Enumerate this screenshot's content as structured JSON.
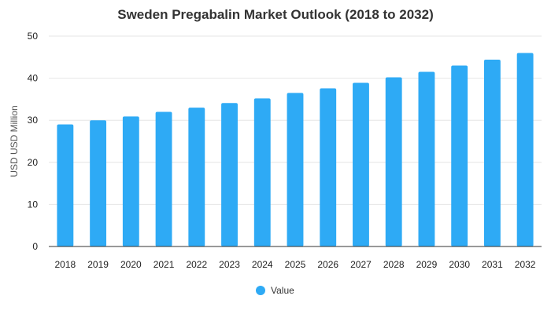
{
  "chart_data": {
    "type": "bar",
    "title": "Sweden Pregabalin Market Outlook (2018 to 2032)",
    "xlabel": "",
    "ylabel": "USD USD Million",
    "categories": [
      "2018",
      "2019",
      "2020",
      "2021",
      "2022",
      "2023",
      "2024",
      "2025",
      "2026",
      "2027",
      "2028",
      "2029",
      "2030",
      "2031",
      "2032"
    ],
    "series": [
      {
        "name": "Value",
        "color": "#2eaaf5",
        "values": [
          29.0,
          30.0,
          30.9,
          32.0,
          33.0,
          34.1,
          35.2,
          36.5,
          37.6,
          38.9,
          40.2,
          41.5,
          43.0,
          44.4,
          46.0
        ]
      }
    ],
    "ylim": [
      0,
      50
    ],
    "yticks": [
      0,
      10,
      20,
      30,
      40,
      50
    ],
    "grid": true,
    "legend_position": "bottom-center"
  }
}
